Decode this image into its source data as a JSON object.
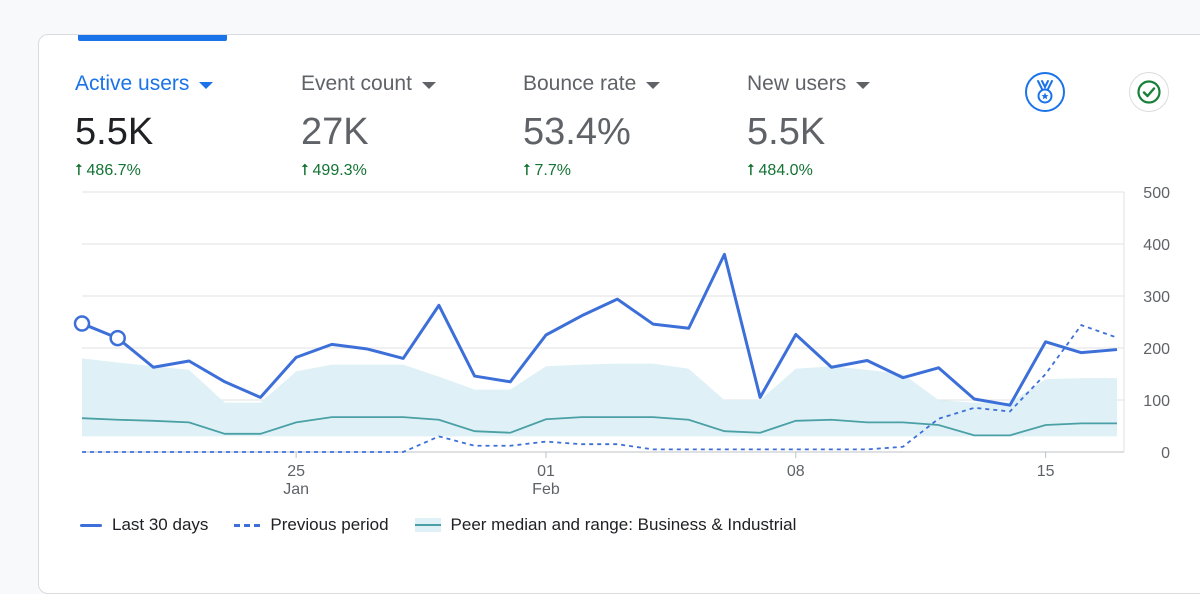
{
  "metrics": [
    {
      "label": "Active users",
      "value": "5.5K",
      "change": "486.7%",
      "active": true
    },
    {
      "label": "Event count",
      "value": "27K",
      "change": "499.3%",
      "active": false
    },
    {
      "label": "Bounce rate",
      "value": "53.4%",
      "change": "7.7%",
      "active": false
    },
    {
      "label": "New users",
      "value": "5.5K",
      "change": "484.0%",
      "active": false
    }
  ],
  "icons": {
    "insights": "medal-icon",
    "status": "check-circle-icon"
  },
  "colors": {
    "accent": "#1a73e8",
    "line": "#3d6fd9",
    "peer_line": "#4aa0a5",
    "peer_band": "#dff1f6",
    "positive": "#137333"
  },
  "chart_data": {
    "type": "line",
    "days": 30,
    "y_ticks": [
      "500",
      "400",
      "300",
      "200",
      "100",
      "0"
    ],
    "ylim": [
      0,
      500
    ],
    "grid": true,
    "x_tick_labels": [
      {
        "day": 6,
        "label": "25",
        "sublabel": "Jan"
      },
      {
        "day": 13,
        "label": "01",
        "sublabel": "Feb"
      },
      {
        "day": 20,
        "label": "08",
        "sublabel": ""
      },
      {
        "day": 27,
        "label": "15",
        "sublabel": ""
      }
    ],
    "legend_position": "bottom-left",
    "series": [
      {
        "name": "Last 30 days",
        "style": "solid",
        "values": [
          247,
          219,
          163,
          175,
          135,
          105,
          182,
          207,
          198,
          180,
          282,
          146,
          135,
          225,
          262,
          294,
          246,
          238,
          380,
          105,
          226,
          163,
          176,
          143,
          162,
          102,
          90,
          212,
          191,
          197
        ]
      },
      {
        "name": "Previous period",
        "style": "dashed",
        "values": [
          0,
          0,
          0,
          0,
          0,
          0,
          0,
          0,
          0,
          0,
          30,
          12,
          12,
          20,
          15,
          15,
          5,
          5,
          5,
          5,
          5,
          5,
          5,
          10,
          64,
          85,
          78,
          150,
          244,
          220
        ]
      },
      {
        "name": "Peer median and range: Business & Industrial",
        "style": "band",
        "median": [
          65,
          62,
          60,
          57,
          35,
          35,
          57,
          67,
          67,
          67,
          62,
          40,
          37,
          63,
          67,
          67,
          67,
          62,
          40,
          37,
          60,
          62,
          57,
          57,
          52,
          32,
          32,
          52,
          55,
          55
        ],
        "range_low": [
          30,
          30,
          30,
          30,
          30,
          30,
          30,
          30,
          30,
          30,
          30,
          30,
          30,
          30,
          30,
          30,
          30,
          30,
          30,
          30,
          30,
          30,
          30,
          30,
          30,
          30,
          30,
          30,
          30,
          30
        ],
        "range_high": [
          180,
          172,
          165,
          158,
          95,
          95,
          155,
          168,
          168,
          168,
          145,
          120,
          120,
          165,
          168,
          170,
          170,
          160,
          100,
          100,
          160,
          165,
          158,
          150,
          100,
          95,
          95,
          140,
          142,
          142
        ]
      }
    ]
  }
}
